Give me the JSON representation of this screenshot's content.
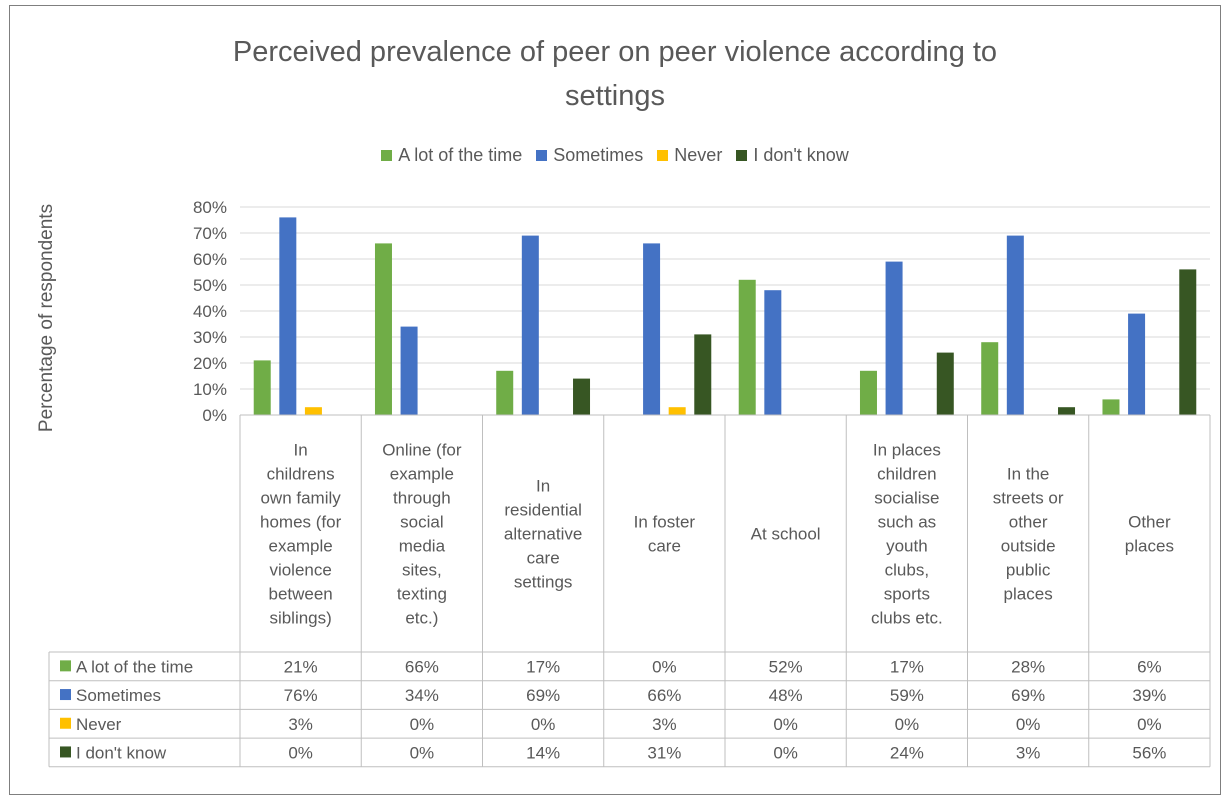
{
  "chart_data": {
    "type": "bar",
    "title": "Perceived prevalence of peer on peer violence according to settings",
    "ylabel": "Percentage of respondents",
    "xlabel": "",
    "ylim": [
      0,
      80
    ],
    "y_ticks": [
      "0%",
      "10%",
      "20%",
      "30%",
      "40%",
      "50%",
      "60%",
      "70%",
      "80%"
    ],
    "grid": true,
    "legend_position": "top",
    "categories": [
      "In childrens own family homes (for example violence between siblings)",
      "Online (for example through social media sites, texting etc.)",
      "In residential alternative care settings",
      "In foster care",
      "At school",
      "In places children socialise such as youth clubs, sports clubs etc.",
      "In the streets or other outside public places",
      "Other places"
    ],
    "category_lines": [
      [
        "In",
        "childrens",
        "own family",
        "homes (for",
        "example",
        "violence",
        "between",
        "siblings)"
      ],
      [
        "Online (for",
        "example",
        "through",
        "social",
        "media",
        "sites,",
        "texting",
        "etc.)"
      ],
      [
        "In",
        "residential",
        "alternative",
        "care",
        "settings"
      ],
      [
        "In foster",
        "care"
      ],
      [
        "At school"
      ],
      [
        "In places",
        "children",
        "socialise",
        "such as",
        "youth",
        "clubs,",
        "sports",
        "clubs etc."
      ],
      [
        "In the",
        "streets or",
        "other",
        "outside",
        "public",
        "places"
      ],
      [
        "Other",
        "places"
      ]
    ],
    "series": [
      {
        "name": "A lot of the time",
        "color": "#70ad47",
        "values": [
          21,
          66,
          17,
          0,
          52,
          17,
          28,
          6
        ],
        "labels": [
          "21%",
          "66%",
          "17%",
          "0%",
          "52%",
          "17%",
          "28%",
          "6%"
        ]
      },
      {
        "name": "Sometimes",
        "color": "#4472c4",
        "values": [
          76,
          34,
          69,
          66,
          48,
          59,
          69,
          39
        ],
        "labels": [
          "76%",
          "34%",
          "69%",
          "66%",
          "48%",
          "59%",
          "69%",
          "39%"
        ]
      },
      {
        "name": "Never",
        "color": "#ffc000",
        "values": [
          3,
          0,
          0,
          3,
          0,
          0,
          0,
          0
        ],
        "labels": [
          "3%",
          "0%",
          "0%",
          "3%",
          "0%",
          "0%",
          "0%",
          "0%"
        ]
      },
      {
        "name": "I don't know",
        "color": "#375623",
        "values": [
          0,
          0,
          14,
          31,
          0,
          24,
          3,
          56
        ],
        "labels": [
          "0%",
          "0%",
          "14%",
          "31%",
          "0%",
          "24%",
          "3%",
          "56%"
        ]
      }
    ]
  }
}
